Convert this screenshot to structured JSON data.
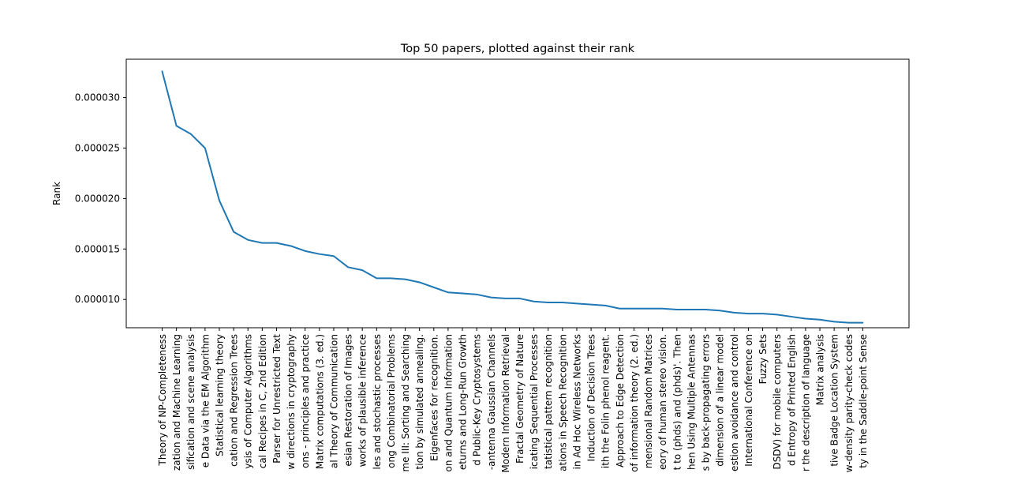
{
  "chart_data": {
    "type": "line",
    "title": "Top 50 papers, plotted against their rank",
    "xlabel": "",
    "ylabel": "Rank",
    "ylim": [
      7.2e-06,
      3.38e-05
    ],
    "yticks": [
      1e-05,
      1.5e-05,
      2e-05,
      2.5e-05,
      3e-05
    ],
    "ytick_labels": [
      "0.000010",
      "0.000015",
      "0.000020",
      "0.000025",
      "0.000030"
    ],
    "grid": false,
    "legend": "none",
    "line_color": "#1f77b4",
    "categories": [
      "Theory of NP-Completeness",
      "zation and Machine Learning",
      "sification and scene analysis",
      "e Data via the EM Algorithm",
      "Statistical learning theory",
      "cation and Regression Trees",
      "ysis of Computer Algorithms",
      "cal Recipes in C, 2nd Edition",
      "Parser for Unrestricted Text",
      "w directions in cryptography",
      "ons - principles and practice",
      "Matrix computations (3. ed.)",
      "al Theory of Communication",
      "esian Restoration of Images",
      "works of plausible inference",
      "les and stochastic processes",
      "ong Combinatorial Problems",
      "me III: Sorting and Searching",
      "tion by simulated annealing.",
      "Eigenfaces for recognition.",
      "on and Quantum Information",
      "eturns and Long-Run Growth",
      "d Public-Key Cryptosystems",
      "-antenna Gaussian Channels",
      "Modern Information Retrieval",
      "Fractal Geometry of Nature",
      "icating Sequential Processes",
      "tatistical pattern recognition",
      "ations in Speech Recognition",
      "in Ad Hoc Wireless Networks",
      "Induction of Decision Trees",
      "ith the Folin phenol reagent.",
      "Approach to Edge Detection",
      "of information theory (2. ed.)",
      "mensional Random Matrices",
      "eory of human stereo vision.",
      "t to (phds) and (phds)'. Then",
      "hen Using Multiple Antennas",
      "s by back-propagating errors",
      "dimension of a linear model",
      "estion avoidance and control",
      "International Conference on",
      "Fuzzy Sets",
      "DSDV) for mobile computers",
      "d Entropy of Printed English",
      "r the description of language",
      "Matrix analysis",
      "tive Badge Location System",
      "w-density parity-check codes",
      "ty in the Saddle-point Sense"
    ],
    "values": [
      3.26e-05,
      2.72e-05,
      2.64e-05,
      2.5e-05,
      1.98e-05,
      1.67e-05,
      1.59e-05,
      1.56e-05,
      1.56e-05,
      1.53e-05,
      1.48e-05,
      1.45e-05,
      1.43e-05,
      1.32e-05,
      1.29e-05,
      1.21e-05,
      1.21e-05,
      1.2e-05,
      1.17e-05,
      1.12e-05,
      1.07e-05,
      1.06e-05,
      1.05e-05,
      1.02e-05,
      1.01e-05,
      1.01e-05,
      9.8e-06,
      9.7e-06,
      9.7e-06,
      9.6e-06,
      9.5e-06,
      9.4e-06,
      9.1e-06,
      9.1e-06,
      9.1e-06,
      9.1e-06,
      9e-06,
      9e-06,
      9e-06,
      8.9e-06,
      8.7e-06,
      8.6e-06,
      8.6e-06,
      8.5e-06,
      8.3e-06,
      8.1e-06,
      8e-06,
      7.8e-06,
      7.7e-06,
      7.7e-06
    ]
  }
}
